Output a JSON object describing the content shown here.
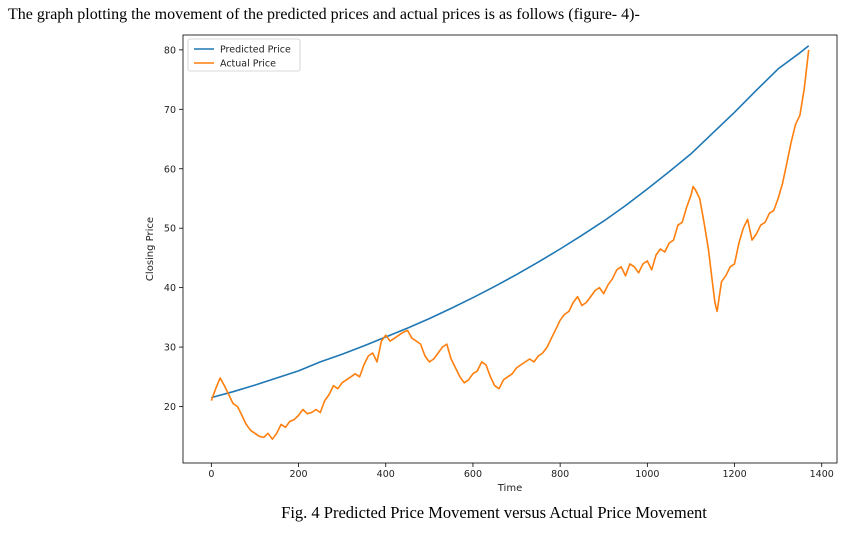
{
  "intro_text": "The graph plotting the movement of the predicted prices and actual prices is  as follows (figure- 4)-",
  "caption": "Fig. 4 Predicted Price Movement versus Actual Price Movement",
  "chart_data": {
    "type": "line",
    "title": "",
    "xlabel": "Time",
    "ylabel": "Closing Price",
    "xlim": [
      -65,
      1435
    ],
    "ylim": [
      10.5,
      82.5
    ],
    "xticks": [
      0,
      200,
      400,
      600,
      800,
      1000,
      1200,
      1400
    ],
    "yticks": [
      20,
      30,
      40,
      50,
      60,
      70,
      80
    ],
    "grid": false,
    "legend_position": "top-left",
    "series": [
      {
        "name": "Predicted Price",
        "color": "#1f77b4",
        "x": [
          0,
          50,
          100,
          150,
          200,
          250,
          300,
          350,
          400,
          450,
          500,
          550,
          600,
          650,
          700,
          750,
          800,
          850,
          900,
          950,
          1000,
          1050,
          1100,
          1150,
          1200,
          1250,
          1300,
          1350,
          1370
        ],
        "y": [
          21.5,
          22.5,
          23.6,
          24.8,
          26.0,
          27.5,
          28.8,
          30.2,
          31.7,
          33.2,
          34.8,
          36.5,
          38.3,
          40.2,
          42.2,
          44.3,
          46.5,
          48.8,
          51.2,
          53.8,
          56.6,
          59.5,
          62.5,
          66.0,
          69.5,
          73.2,
          76.8,
          79.5,
          80.7
        ]
      },
      {
        "name": "Actual Price",
        "color": "#ff7f0e",
        "x": [
          0,
          10,
          20,
          30,
          40,
          50,
          60,
          70,
          80,
          90,
          100,
          110,
          120,
          130,
          140,
          150,
          160,
          170,
          180,
          190,
          200,
          210,
          220,
          230,
          240,
          250,
          260,
          270,
          280,
          290,
          300,
          310,
          320,
          330,
          340,
          350,
          360,
          370,
          380,
          390,
          400,
          410,
          420,
          430,
          440,
          450,
          460,
          470,
          480,
          490,
          500,
          510,
          520,
          530,
          540,
          550,
          560,
          570,
          580,
          590,
          600,
          610,
          620,
          630,
          640,
          650,
          660,
          670,
          680,
          690,
          700,
          710,
          720,
          730,
          740,
          750,
          760,
          770,
          780,
          790,
          800,
          810,
          820,
          830,
          840,
          850,
          860,
          870,
          880,
          890,
          900,
          910,
          920,
          930,
          940,
          950,
          960,
          970,
          980,
          990,
          1000,
          1010,
          1020,
          1030,
          1040,
          1050,
          1060,
          1070,
          1080,
          1090,
          1100,
          1105,
          1110,
          1120,
          1130,
          1140,
          1150,
          1155,
          1160,
          1170,
          1180,
          1190,
          1200,
          1210,
          1220,
          1230,
          1240,
          1250,
          1260,
          1270,
          1280,
          1290,
          1300,
          1310,
          1320,
          1330,
          1340,
          1350,
          1360,
          1370
        ],
        "y": [
          21.0,
          23.0,
          24.8,
          23.5,
          22.0,
          20.5,
          20.0,
          18.5,
          17.0,
          16.0,
          15.5,
          15.0,
          14.8,
          15.5,
          14.5,
          15.5,
          17.0,
          16.5,
          17.5,
          17.8,
          18.5,
          19.5,
          18.8,
          19.0,
          19.5,
          19.0,
          21.0,
          22.0,
          23.5,
          23.0,
          24.0,
          24.5,
          25.0,
          25.5,
          25.0,
          27.0,
          28.5,
          29.0,
          27.5,
          31.0,
          32.0,
          31.0,
          31.5,
          32.0,
          32.5,
          32.8,
          31.5,
          31.0,
          30.5,
          28.5,
          27.5,
          28.0,
          29.0,
          30.0,
          30.5,
          28.0,
          26.5,
          25.0,
          24.0,
          24.5,
          25.5,
          26.0,
          27.5,
          27.0,
          25.0,
          23.5,
          23.0,
          24.5,
          25.0,
          25.5,
          26.5,
          27.0,
          27.5,
          28.0,
          27.5,
          28.5,
          29.0,
          30.0,
          31.5,
          33.0,
          34.5,
          35.5,
          36.0,
          37.5,
          38.5,
          37.0,
          37.5,
          38.5,
          39.5,
          40.0,
          39.0,
          40.5,
          41.5,
          43.0,
          43.5,
          42.0,
          44.0,
          43.5,
          42.5,
          44.0,
          44.5,
          43.0,
          45.5,
          46.5,
          46.0,
          47.5,
          48.0,
          50.5,
          51.0,
          53.5,
          55.5,
          57.0,
          56.5,
          55.0,
          51.0,
          46.5,
          40.5,
          37.5,
          36.0,
          41.0,
          42.0,
          43.5,
          44.0,
          47.5,
          50.0,
          51.5,
          48.0,
          49.0,
          50.5,
          51.0,
          52.5,
          53.0,
          55.0,
          57.5,
          61.0,
          64.5,
          67.5,
          69.0,
          73.5,
          80.0
        ]
      }
    ]
  }
}
